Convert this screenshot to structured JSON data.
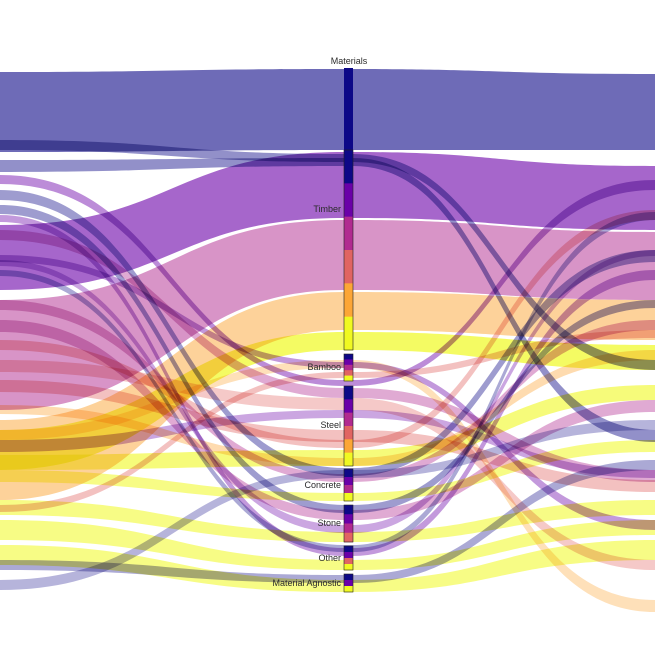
{
  "diagram": {
    "type": "parallel-categories-sankey",
    "axis": {
      "title": "Materials",
      "categories": [
        {
          "label": "Timber",
          "segments": [
            "#0d0887",
            "#6a00a8",
            "#b12a90",
            "#e16462",
            "#fca636",
            "#f0f921"
          ]
        },
        {
          "label": "Bamboo",
          "segments": [
            "#0d0887",
            "#6a00a8",
            "#b12a90",
            "#e16462",
            "#f0f921"
          ]
        },
        {
          "label": "Steel",
          "segments": [
            "#0d0887",
            "#6a00a8",
            "#b12a90",
            "#e16462",
            "#fca636",
            "#f0f921"
          ]
        },
        {
          "label": "Concrete",
          "segments": [
            "#0d0887",
            "#6a00a8",
            "#b12a90",
            "#f0f921"
          ]
        },
        {
          "label": "Stone",
          "segments": [
            "#0d0887",
            "#6a00a8",
            "#b12a90",
            "#e16462"
          ]
        },
        {
          "label": "Other",
          "segments": [
            "#0d0887",
            "#6a00a8",
            "#e16462",
            "#f0f921"
          ]
        },
        {
          "label": "Material Agnostic",
          "segments": [
            "#0d0887",
            "#6a00a8",
            "#f0f921"
          ]
        }
      ]
    },
    "palette": {
      "indigo": "#0d0887",
      "purple": "#6a00a8",
      "magenta": "#b12a90",
      "coral": "#e16462",
      "orange": "#fca636",
      "yellow": "#f0f921"
    }
  }
}
